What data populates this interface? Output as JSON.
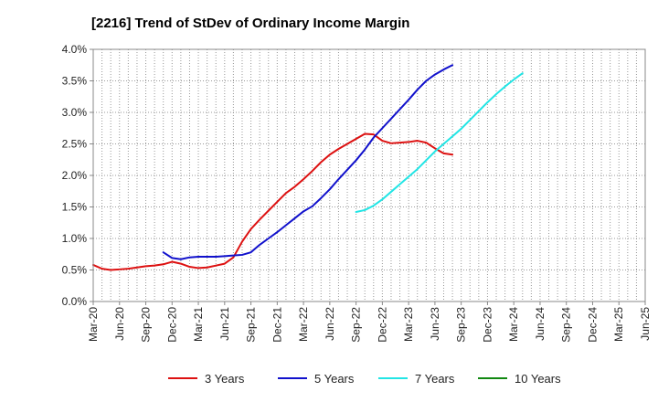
{
  "chart_data": {
    "type": "line",
    "title": "[2216]  Trend of StDev of Ordinary Income Margin",
    "xlabel": "",
    "ylabel": "",
    "ylim": [
      0,
      4.0
    ],
    "y_ticks": [
      "0.0%",
      "0.5%",
      "1.0%",
      "1.5%",
      "2.0%",
      "2.5%",
      "3.0%",
      "3.5%",
      "4.0%"
    ],
    "x_ticks": [
      "Mar-20",
      "Jun-20",
      "Sep-20",
      "Dec-20",
      "Mar-21",
      "Jun-21",
      "Sep-21",
      "Dec-21",
      "Mar-22",
      "Jun-22",
      "Sep-22",
      "Dec-22",
      "Mar-23",
      "Jun-23",
      "Sep-23",
      "Dec-23",
      "Mar-24",
      "Jun-24",
      "Sep-24",
      "Dec-24",
      "Mar-25",
      "Jun-25"
    ],
    "grid": true,
    "legend_position": "bottom",
    "series": [
      {
        "name": "3 Years",
        "color": "#dd1111",
        "start_index": 0,
        "values": [
          0.58,
          0.52,
          0.5,
          0.51,
          0.52,
          0.54,
          0.56,
          0.57,
          0.59,
          0.63,
          0.6,
          0.55,
          0.53,
          0.54,
          0.57,
          0.6,
          0.7,
          0.95,
          1.15,
          1.3,
          1.44,
          1.58,
          1.72,
          1.82,
          1.94,
          2.07,
          2.21,
          2.33,
          2.42,
          2.5,
          2.58,
          2.66,
          2.65,
          2.55,
          2.51,
          2.52,
          2.53,
          2.55,
          2.52,
          2.43,
          2.35,
          2.33
        ]
      },
      {
        "name": "5 Years",
        "color": "#1111cc",
        "start_index": 8,
        "values": [
          0.78,
          0.69,
          0.67,
          0.7,
          0.71,
          0.71,
          0.71,
          0.72,
          0.73,
          0.74,
          0.78,
          0.9,
          1.0,
          1.1,
          1.21,
          1.32,
          1.43,
          1.51,
          1.64,
          1.78,
          1.94,
          2.09,
          2.24,
          2.41,
          2.6,
          2.75,
          2.9,
          3.05,
          3.2,
          3.36,
          3.5,
          3.6,
          3.68,
          3.75
        ]
      },
      {
        "name": "7 Years",
        "color": "#22e5e5",
        "start_index": 30,
        "values": [
          1.42,
          1.45,
          1.52,
          1.62,
          1.74,
          1.86,
          1.98,
          2.1,
          2.24,
          2.38,
          2.5,
          2.62,
          2.74,
          2.88,
          3.02,
          3.16,
          3.29,
          3.41,
          3.52,
          3.62
        ]
      },
      {
        "name": "10 Years",
        "color": "#118811",
        "start_index": 0,
        "values": []
      }
    ]
  }
}
